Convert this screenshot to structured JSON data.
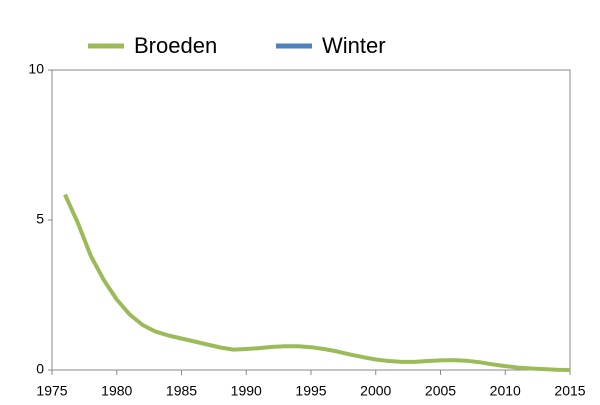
{
  "chart_data": {
    "type": "line",
    "x": [
      1976,
      1977,
      1978,
      1979,
      1980,
      1981,
      1982,
      1983,
      1984,
      1985,
      1986,
      1987,
      1988,
      1989,
      1990,
      1991,
      1992,
      1993,
      1994,
      1995,
      1996,
      1997,
      1998,
      1999,
      2000,
      2001,
      2002,
      2003,
      2004,
      2005,
      2006,
      2007,
      2008,
      2009,
      2010,
      2011,
      2012,
      2013,
      2014,
      2015
    ],
    "series": [
      {
        "name": "Broeden",
        "color": "#9bbb59",
        "values": [
          5.85,
          4.9,
          3.8,
          3.0,
          2.35,
          1.85,
          1.5,
          1.28,
          1.15,
          1.05,
          0.95,
          0.85,
          0.75,
          0.68,
          0.7,
          0.73,
          0.77,
          0.79,
          0.79,
          0.76,
          0.7,
          0.62,
          0.52,
          0.43,
          0.35,
          0.3,
          0.27,
          0.27,
          0.3,
          0.32,
          0.33,
          0.31,
          0.26,
          0.19,
          0.13,
          0.08,
          0.05,
          0.03,
          0.01,
          0.0
        ]
      },
      {
        "name": "Winter",
        "color": "#4f81bd",
        "values": [
          null,
          null,
          null,
          null,
          null,
          null,
          null,
          null,
          null,
          null,
          null,
          null,
          null,
          null,
          null,
          null,
          null,
          null,
          null,
          null,
          null,
          null,
          null,
          null,
          null,
          null,
          null,
          null,
          null,
          null,
          null,
          null,
          null,
          null,
          null,
          null,
          null,
          null,
          null,
          null
        ]
      }
    ],
    "xlim": [
      1975,
      2015
    ],
    "xticks": [
      1975,
      1980,
      1985,
      1990,
      1995,
      2000,
      2005,
      2010,
      2015
    ],
    "ylim": [
      0,
      10
    ],
    "yticks": [
      0,
      5,
      10
    ]
  }
}
